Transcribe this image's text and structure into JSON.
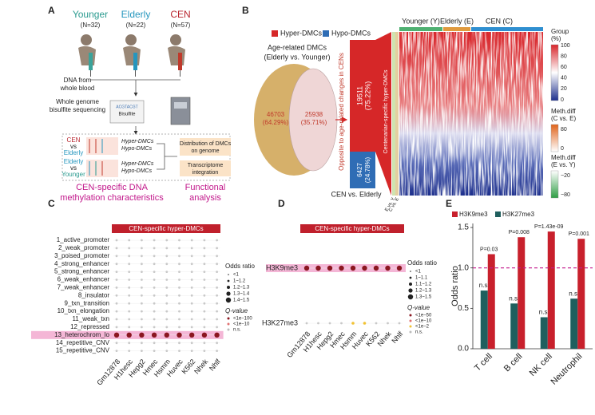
{
  "panel_a": {
    "label": "A",
    "groups": [
      {
        "name": "Younger",
        "n": "(N=32)"
      },
      {
        "name": "Elderly",
        "n": "(N=22)"
      },
      {
        "name": "CEN",
        "n": "(N=57)"
      }
    ],
    "step_blood": [
      "DNA from",
      "whole blood"
    ],
    "step_seq": [
      "Whole genome",
      "bisulfite sequencing"
    ],
    "bisulfite": "Bisulfite",
    "comparisons": [
      [
        "CEN",
        "vs",
        "Elderly"
      ],
      [
        "Elderly",
        "vs",
        "Younger"
      ]
    ],
    "dmc_types": [
      "Hyper-DMCs",
      "Hypo-DMCs"
    ],
    "analyses": [
      [
        "Distribution of DMCs",
        "on genome"
      ],
      [
        "Transcriptome",
        "integration"
      ]
    ],
    "caption_left": [
      "CEN-specific DNA",
      "methylation characteristics"
    ],
    "caption_right": [
      "Functional",
      "analysis"
    ]
  },
  "panel_b": {
    "label": "B",
    "legend": [
      "Hyper-DMCs",
      "Hypo-DMCs"
    ],
    "venn_title": [
      "Age-related DMCs",
      "(Elderly vs. Younger)"
    ],
    "venn_left": [
      "46703",
      "(64.29%)"
    ],
    "venn_right": [
      "25938",
      "(35.71%)"
    ],
    "opposite": "Opposite to age-related changes in CENs",
    "bar_hyper": [
      "19511",
      "(75.22%)"
    ],
    "bar_hypo": [
      "6427",
      "(24.78%)"
    ],
    "bar_caption": "CEN vs. Elderly",
    "wedge": "Centenarian-specific hyper-DMCs",
    "heatmap_groups": [
      "Younger (Y)",
      "Elderly (E)",
      "CEN (C)"
    ],
    "row_labels": [
      "E vs. Y",
      "C vs. E"
    ],
    "legend_group": {
      "title": [
        "Group",
        "(%)"
      ],
      "ticks": [
        "100",
        "80",
        "60",
        "40",
        "20",
        "0"
      ]
    },
    "legend_ce": {
      "title": [
        "Meth.diff",
        "(C vs. E)"
      ],
      "ticks": [
        "80",
        "0"
      ]
    },
    "legend_ey": {
      "title": [
        "Meth.diff",
        "(E vs. Y)"
      ],
      "ticks": [
        "−20",
        "−80"
      ]
    }
  },
  "panel_c": {
    "label": "C",
    "header": "CEN-specific hyper-DMCs",
    "rows": [
      "1_active_promoter",
      "2_weak_promoter",
      "3_poised_promoter",
      "4_strong_enhancer",
      "5_strong_enhancer",
      "6_weak_enhancer",
      "7_weak_enhancer",
      "8_insulator",
      "9_txn_transition",
      "10_txn_elongation",
      "11_weak_txn",
      "12_repressed",
      "13_heterochrom_lo",
      "14_repetitive_CNV",
      "15_repetitive_CNV"
    ],
    "columns": [
      "Gm12878",
      "H1hesc",
      "Hepg2",
      "Hmec",
      "Hsmm",
      "Huvec",
      "K562",
      "Nhek",
      "Nhlf"
    ],
    "odds_title": "Odds ratio",
    "odds_items": [
      "<1",
      "1~1.2",
      "1.2~1.3",
      "1.3~1.4",
      "1.4~1.5"
    ],
    "q_title": "Q-value",
    "q_items": [
      "<1e−100",
      "<1e−10",
      "n.s."
    ]
  },
  "panel_d": {
    "label": "D",
    "header": "CEN-specific hyper-DMCs",
    "rows": [
      "H3K9me3",
      "H3K27me3"
    ],
    "columns": [
      "Gm12878",
      "H1hesc",
      "Hepg2",
      "Hmec",
      "Hsmm",
      "Huvec",
      "K562",
      "Nhek",
      "Nhlf"
    ],
    "odds_title": "Odds ratio",
    "odds_items": [
      "<1",
      "1~1.1",
      "1.1~1.2",
      "1.2~1.3",
      "1.3~1.5"
    ],
    "q_title": "Q-value",
    "q_items": [
      "<1e−50",
      "<1e−10",
      "<1e−2",
      "n.s."
    ]
  },
  "chart_data": {
    "type": "bar",
    "label": "E",
    "ylabel": "Odds ratio",
    "categories": [
      "T cell",
      "B cell",
      "NK cell",
      "Neutrophil"
    ],
    "series": [
      {
        "name": "H3K9me3",
        "color": "#c8202c",
        "values": [
          1.17,
          1.38,
          1.45,
          1.36
        ],
        "annotations": [
          "P=0.03",
          "P=0.008",
          "P=1.43e-09",
          "P=0.001"
        ]
      },
      {
        "name": "H3K27me3",
        "color": "#1f5f5e",
        "values": [
          0.72,
          0.56,
          0.39,
          0.62
        ],
        "annotations": [
          "n.s.",
          "n.s.",
          "n.s.",
          "n.s."
        ]
      }
    ],
    "ylim": [
      0,
      1.55
    ],
    "yticks": [
      {
        "value": 0,
        "label": "0.0"
      },
      {
        "value": 0.5,
        "label": "0.5"
      },
      {
        "value": 1,
        "label": "1.0"
      },
      {
        "value": 1.5,
        "label": "1.5"
      }
    ],
    "hline": 1,
    "hline_color": "#c2188b"
  }
}
